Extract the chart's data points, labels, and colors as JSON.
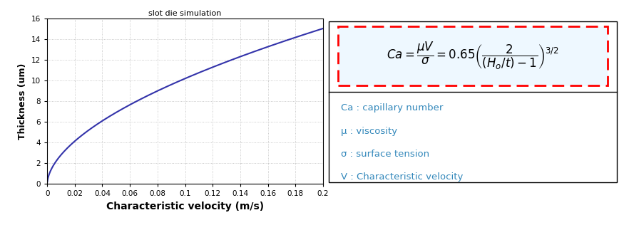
{
  "title": "slot die simulation",
  "xlabel": "Characteristic velocity (m/s)",
  "ylabel": "Thickness (um)",
  "xlim": [
    0,
    0.2
  ],
  "ylim": [
    0,
    16
  ],
  "xticks": [
    0,
    0.02,
    0.04,
    0.06,
    0.08,
    0.1,
    0.12,
    0.14,
    0.16,
    0.18,
    0.2
  ],
  "xtick_labels": [
    "0",
    "0.02",
    "0.04",
    "0.06",
    "0.08",
    "0.1",
    "0.12",
    "0.14",
    "0.16",
    "0.18",
    "0.2"
  ],
  "yticks": [
    0,
    2,
    4,
    6,
    8,
    10,
    12,
    14,
    16
  ],
  "curve_color": "#3333aa",
  "grid_color": "#bbbbbb",
  "background_color": "#ffffff",
  "legend_items": [
    "Ca : capillary number",
    "μ : viscosity",
    "σ : surface tension",
    "V : Characteristic velocity"
  ],
  "legend_color": "#3388bb",
  "curve_power_a": 37.0,
  "curve_power_b": 0.56
}
